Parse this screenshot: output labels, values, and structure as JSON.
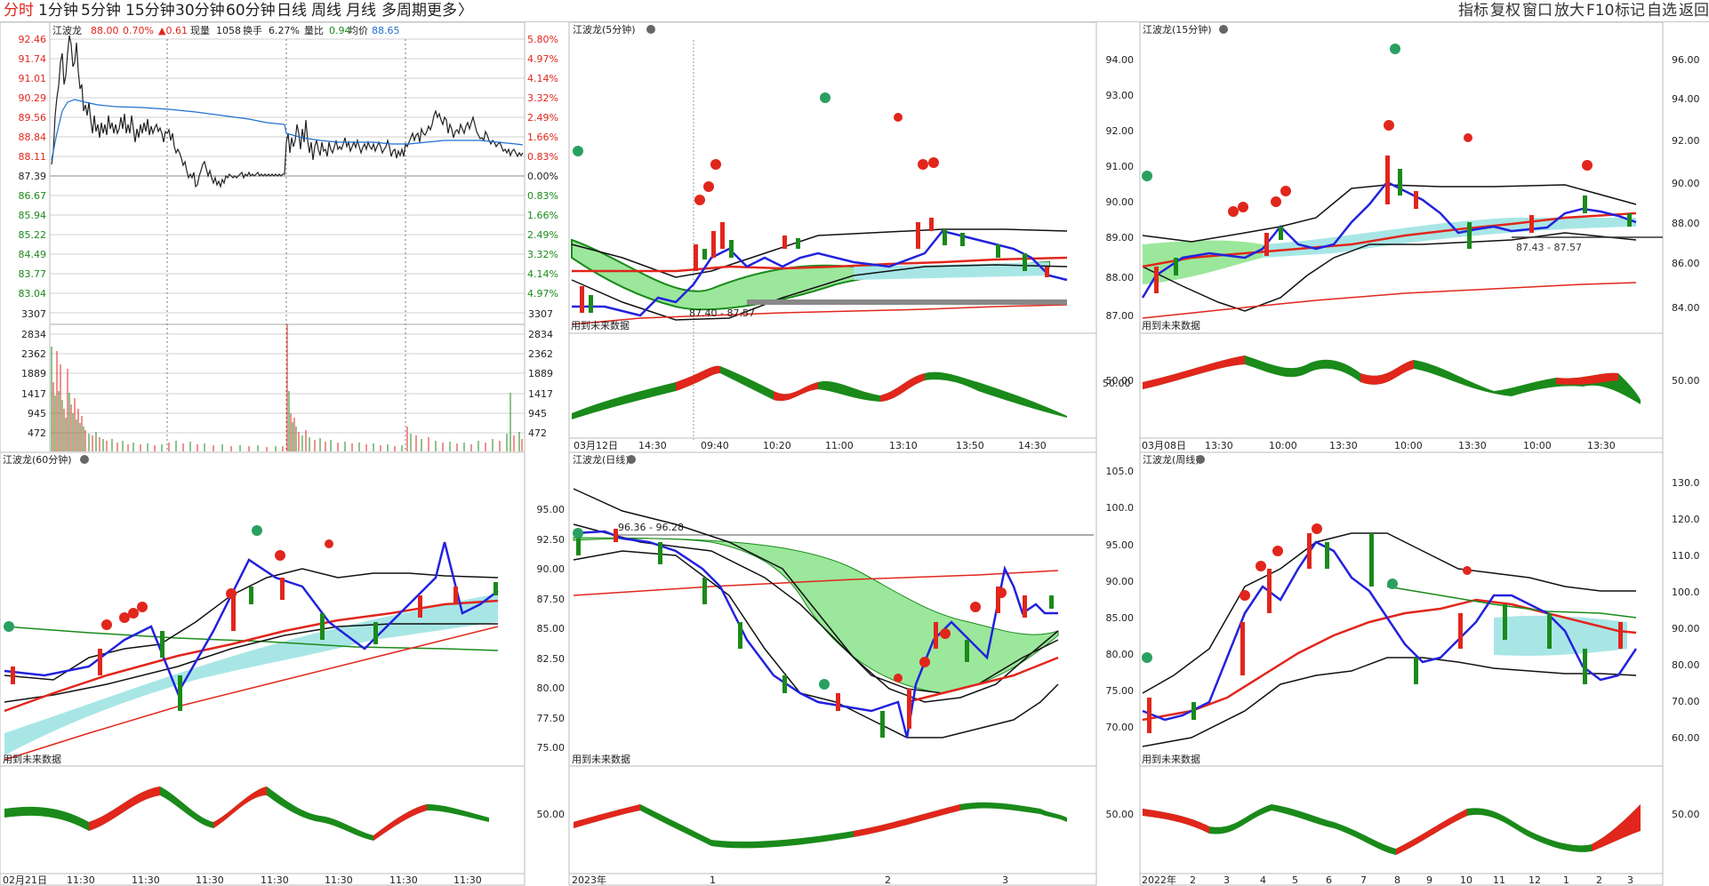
{
  "period_tabs": [
    "分时",
    "1分钟",
    "5分钟",
    "15分钟",
    "30分钟",
    "60分钟",
    "日线",
    "周线",
    "月线",
    "多周期",
    "更多"
  ],
  "more_arrow": "〉",
  "toolbar": [
    "指标",
    "复权",
    "窗口",
    "放大",
    "F10",
    "标记",
    "自选",
    "返回"
  ],
  "colors": {
    "up": "#e1261c",
    "down": "#1a8a1a",
    "avg_line": "#1f6fd1",
    "macd_blue": "#2222dd",
    "fill_green": "#8fe08f",
    "fill_cyan": "#a8e6e6"
  },
  "intraday": {
    "header": [
      "江波龙",
      "88.00",
      "0.70%",
      "▲0.61",
      "现量",
      "1058",
      "换手",
      "6.27%",
      "量比",
      "0.94",
      "均价",
      "88.65"
    ],
    "price_ticks": [
      "92.46",
      "91.74",
      "91.01",
      "90.29",
      "89.56",
      "88.84",
      "88.11",
      "87.39",
      "86.67",
      "85.94",
      "85.22",
      "84.49",
      "83.77",
      "83.04"
    ],
    "pct_ticks": [
      "5.80%",
      "4.97%",
      "4.14%",
      "3.32%",
      "2.49%",
      "1.66%",
      "0.83%",
      "0.00%",
      "0.83%",
      "1.66%",
      "2.49%",
      "3.32%",
      "4.14%",
      "4.97%"
    ],
    "vol_ticks": [
      "3307",
      "2834",
      "2362",
      "1889",
      "1417",
      "945",
      "472"
    ]
  },
  "panel_5m": {
    "title": "江波龙(5分钟)",
    "hint": "用到未来数据",
    "range_label": "87.40 - 87.57",
    "mid_label": "50.00",
    "x_labels": [
      "03月12日",
      "14:30",
      "09:40",
      "10:20",
      "11:00",
      "13:10",
      "13:50",
      "14:30"
    ]
  },
  "panel_15m": {
    "title": "江波龙(15分钟)",
    "hint": "用到未来数据",
    "range_label": "87.43 - 87.57",
    "y_ticks": [
      "94.00",
      "93.00",
      "92.00",
      "91.00",
      "90.00",
      "89.00",
      "88.00",
      "87.00"
    ],
    "mid_label": "50.00",
    "right_ticks": [
      "96.00",
      "94.00",
      "92.00",
      "90.00",
      "88.00",
      "86.00",
      "84.00",
      "50.00"
    ],
    "x_labels": [
      "03月08日",
      "13:30",
      "10:00",
      "13:30",
      "10:00",
      "13:30",
      "10:00",
      "13:30"
    ]
  },
  "panel_60m": {
    "title": "江波龙(60分钟)",
    "hint": "用到未来数据",
    "x_labels": [
      "02月21日",
      "11:30",
      "11:30",
      "11:30",
      "11:30",
      "11:30",
      "11:30",
      "11:30"
    ]
  },
  "panel_day": {
    "title": "江波龙(日线)",
    "hint": "用到未来数据",
    "range_label": "96.36 - 96.28",
    "y_ticks": [
      "95.00",
      "92.50",
      "90.00",
      "87.50",
      "85.00",
      "82.50",
      "80.00",
      "77.50",
      "75.00"
    ],
    "mid_label": "50.00",
    "x_labels": [
      "2023年",
      "1",
      "2",
      "3"
    ]
  },
  "panel_week": {
    "title": "江波龙(周线)",
    "hint": "用到未来数据",
    "y_ticks": [
      "105.0",
      "100.0",
      "95.00",
      "90.00",
      "85.00",
      "80.00",
      "75.00",
      "70.00"
    ],
    "mid_label": "50.00",
    "right_ticks": [
      "130.0",
      "120.0",
      "110.0",
      "100.0",
      "90.00",
      "80.00",
      "70.00",
      "60.00",
      "50.00"
    ],
    "x_labels": [
      "2022年",
      "2",
      "3",
      "4",
      "5",
      "6",
      "7",
      "8",
      "9",
      "10",
      "11",
      "12",
      "1",
      "2",
      "3"
    ]
  }
}
